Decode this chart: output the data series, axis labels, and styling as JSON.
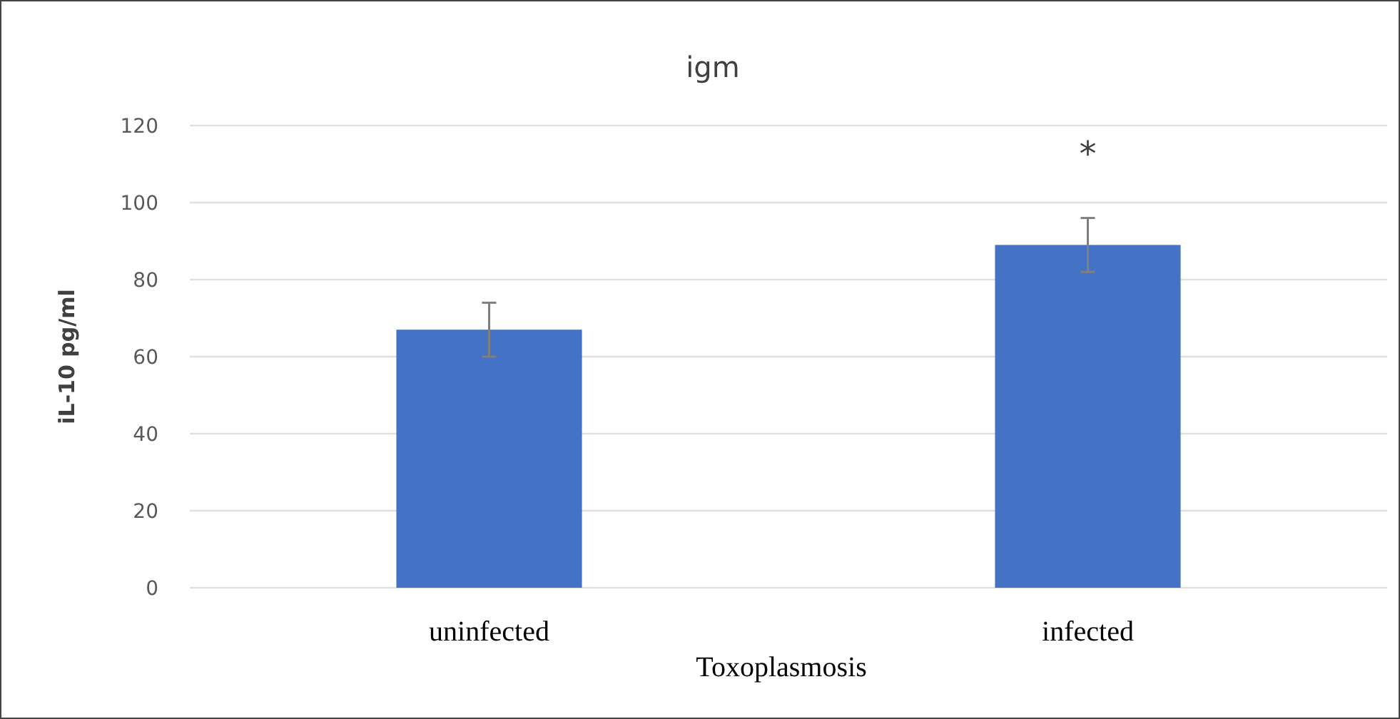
{
  "chart_data": {
    "type": "bar",
    "title": "igm",
    "xlabel": "Toxoplasmosis",
    "ylabel": "iL-10 pg/ml",
    "categories": [
      "uninfected",
      "infected"
    ],
    "values": [
      67,
      89
    ],
    "errors": [
      7,
      7
    ],
    "color": "#4472c4",
    "ylim": [
      0,
      120
    ],
    "yticks": [
      0,
      20,
      40,
      60,
      80,
      100,
      120
    ],
    "grid": "y",
    "annotations": [
      "*"
    ]
  }
}
